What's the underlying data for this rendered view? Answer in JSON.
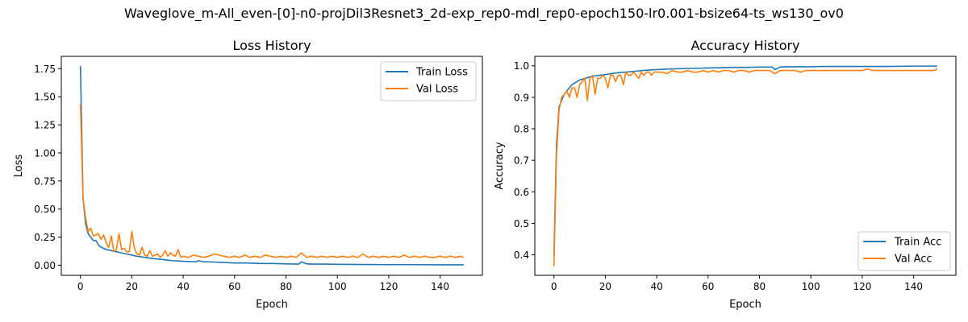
{
  "figure": {
    "suptitle": "Waveglove_m-All_even-[0]-n0-projDil3Resnet3_2d-exp_rep0-mdl_rep0-epoch150-lr0.001-bsize64-ts_ws130_ov0"
  },
  "colors": {
    "train": "#1f77b4",
    "val": "#ff7f0e"
  },
  "chart_data": [
    {
      "type": "line",
      "title": "Loss History",
      "xlabel": "Epoch",
      "ylabel": "Loss",
      "xlim": [
        -7.45,
        156.45
      ],
      "ylim": [
        -0.09,
        1.86
      ],
      "xticks": [
        0,
        20,
        40,
        60,
        80,
        100,
        120,
        140
      ],
      "xtick_labels": [
        "0",
        "20",
        "40",
        "60",
        "80",
        "100",
        "120",
        "140"
      ],
      "yticks": [
        0,
        0.25,
        0.5,
        0.75,
        1.0,
        1.25,
        1.5,
        1.75
      ],
      "ytick_labels": [
        "0.00",
        "0.25",
        "0.50",
        "0.75",
        "1.00",
        "1.25",
        "1.50",
        "1.75"
      ],
      "grid": false,
      "legend_position": "upper right",
      "series": [
        {
          "name": "Train Loss",
          "color_key": "train",
          "x": [
            0,
            1,
            2,
            3,
            4,
            5,
            6,
            7,
            8,
            9,
            10,
            12,
            14,
            16,
            18,
            20,
            22,
            25,
            28,
            32,
            36,
            40,
            45,
            46,
            48,
            50,
            55,
            60,
            65,
            70,
            75,
            80,
            85,
            86,
            88,
            90,
            95,
            100,
            105,
            110,
            120,
            130,
            140,
            149
          ],
          "y": [
            1.77,
            0.6,
            0.37,
            0.28,
            0.25,
            0.22,
            0.22,
            0.18,
            0.16,
            0.15,
            0.14,
            0.13,
            0.12,
            0.11,
            0.1,
            0.09,
            0.08,
            0.07,
            0.06,
            0.05,
            0.04,
            0.035,
            0.03,
            0.04,
            0.03,
            0.03,
            0.025,
            0.02,
            0.02,
            0.015,
            0.015,
            0.012,
            0.01,
            0.03,
            0.012,
            0.01,
            0.01,
            0.008,
            0.007,
            0.006,
            0.005,
            0.005,
            0.004,
            0.004
          ]
        },
        {
          "name": "Val Loss",
          "color_key": "val",
          "x": [
            0,
            1,
            2,
            3,
            4,
            5,
            6,
            7,
            8,
            9,
            10,
            11,
            12,
            13,
            14,
            15,
            16,
            17,
            18,
            19,
            20,
            21,
            22,
            23,
            24,
            25,
            26,
            27,
            28,
            29,
            30,
            31,
            32,
            33,
            34,
            35,
            36,
            37,
            38,
            39,
            40,
            42,
            44,
            46,
            48,
            50,
            52,
            54,
            56,
            58,
            60,
            62,
            64,
            66,
            68,
            70,
            72,
            74,
            76,
            78,
            80,
            82,
            84,
            86,
            88,
            90,
            92,
            94,
            96,
            98,
            100,
            102,
            104,
            106,
            108,
            110,
            112,
            114,
            116,
            118,
            120,
            122,
            124,
            126,
            128,
            130,
            132,
            134,
            136,
            138,
            140,
            142,
            144,
            146,
            148,
            149
          ],
          "y": [
            1.43,
            0.6,
            0.42,
            0.3,
            0.33,
            0.26,
            0.27,
            0.28,
            0.23,
            0.27,
            0.2,
            0.16,
            0.26,
            0.12,
            0.14,
            0.28,
            0.14,
            0.15,
            0.12,
            0.12,
            0.3,
            0.15,
            0.1,
            0.09,
            0.16,
            0.09,
            0.08,
            0.13,
            0.08,
            0.09,
            0.1,
            0.07,
            0.09,
            0.13,
            0.08,
            0.11,
            0.09,
            0.08,
            0.14,
            0.07,
            0.08,
            0.07,
            0.09,
            0.08,
            0.07,
            0.08,
            0.1,
            0.09,
            0.08,
            0.07,
            0.08,
            0.07,
            0.09,
            0.07,
            0.08,
            0.07,
            0.09,
            0.08,
            0.07,
            0.08,
            0.07,
            0.08,
            0.07,
            0.11,
            0.07,
            0.08,
            0.07,
            0.08,
            0.07,
            0.08,
            0.07,
            0.08,
            0.07,
            0.08,
            0.07,
            0.1,
            0.07,
            0.08,
            0.07,
            0.08,
            0.07,
            0.08,
            0.07,
            0.09,
            0.07,
            0.08,
            0.07,
            0.08,
            0.07,
            0.07,
            0.08,
            0.07,
            0.08,
            0.07,
            0.08,
            0.07
          ]
        }
      ]
    },
    {
      "type": "line",
      "title": "Accuracy History",
      "xlabel": "Epoch",
      "ylabel": "Accuracy",
      "xlim": [
        -7.45,
        156.45
      ],
      "ylim": [
        0.335,
        1.03
      ],
      "xticks": [
        0,
        20,
        40,
        60,
        80,
        100,
        120,
        140
      ],
      "xtick_labels": [
        "0",
        "20",
        "40",
        "60",
        "80",
        "100",
        "120",
        "140"
      ],
      "yticks": [
        0.4,
        0.5,
        0.6,
        0.7,
        0.8,
        0.9,
        1.0
      ],
      "ytick_labels": [
        "0.4",
        "0.5",
        "0.6",
        "0.7",
        "0.8",
        "0.9",
        "1.0"
      ],
      "grid": false,
      "legend_position": "lower right",
      "series": [
        {
          "name": "Train Acc",
          "color_key": "train",
          "x": [
            0,
            1,
            2,
            3,
            4,
            5,
            6,
            7,
            8,
            9,
            10,
            12,
            14,
            16,
            18,
            20,
            22,
            25,
            28,
            32,
            36,
            40,
            45,
            50,
            55,
            60,
            65,
            70,
            75,
            80,
            85,
            86,
            88,
            90,
            95,
            100,
            105,
            110,
            120,
            130,
            140,
            149
          ],
          "y": [
            0.4,
            0.75,
            0.87,
            0.89,
            0.91,
            0.92,
            0.93,
            0.94,
            0.945,
            0.95,
            0.955,
            0.96,
            0.965,
            0.968,
            0.97,
            0.972,
            0.975,
            0.978,
            0.98,
            0.983,
            0.986,
            0.988,
            0.99,
            0.991,
            0.992,
            0.993,
            0.994,
            0.995,
            0.995,
            0.996,
            0.996,
            0.988,
            0.996,
            0.997,
            0.997,
            0.997,
            0.998,
            0.998,
            0.998,
            0.998,
            0.999,
            0.999
          ]
        },
        {
          "name": "Val Acc",
          "color_key": "val",
          "x": [
            0,
            1,
            2,
            3,
            4,
            5,
            6,
            7,
            8,
            9,
            10,
            11,
            12,
            13,
            14,
            15,
            16,
            17,
            18,
            19,
            20,
            21,
            22,
            23,
            24,
            25,
            26,
            27,
            28,
            29,
            30,
            31,
            32,
            33,
            34,
            35,
            36,
            37,
            38,
            39,
            40,
            42,
            44,
            46,
            48,
            50,
            52,
            54,
            56,
            58,
            60,
            62,
            64,
            66,
            68,
            70,
            72,
            74,
            76,
            78,
            80,
            82,
            84,
            86,
            88,
            90,
            92,
            94,
            96,
            98,
            100,
            102,
            104,
            106,
            108,
            110,
            112,
            114,
            116,
            118,
            120,
            122,
            124,
            126,
            128,
            130,
            132,
            134,
            136,
            138,
            140,
            142,
            144,
            146,
            148,
            149
          ],
          "y": [
            0.365,
            0.72,
            0.86,
            0.9,
            0.91,
            0.92,
            0.9,
            0.93,
            0.93,
            0.9,
            0.94,
            0.95,
            0.96,
            0.89,
            0.96,
            0.97,
            0.91,
            0.96,
            0.96,
            0.97,
            0.96,
            0.93,
            0.97,
            0.97,
            0.95,
            0.97,
            0.97,
            0.94,
            0.98,
            0.97,
            0.97,
            0.98,
            0.97,
            0.96,
            0.98,
            0.97,
            0.98,
            0.98,
            0.97,
            0.98,
            0.98,
            0.98,
            0.975,
            0.985,
            0.98,
            0.98,
            0.985,
            0.98,
            0.98,
            0.985,
            0.98,
            0.985,
            0.98,
            0.985,
            0.985,
            0.98,
            0.985,
            0.985,
            0.98,
            0.985,
            0.985,
            0.985,
            0.985,
            0.975,
            0.985,
            0.985,
            0.985,
            0.985,
            0.98,
            0.985,
            0.985,
            0.985,
            0.985,
            0.985,
            0.985,
            0.985,
            0.985,
            0.985,
            0.985,
            0.985,
            0.985,
            0.99,
            0.985,
            0.985,
            0.985,
            0.985,
            0.985,
            0.985,
            0.985,
            0.985,
            0.985,
            0.985,
            0.985,
            0.985,
            0.985,
            0.99
          ]
        }
      ]
    }
  ]
}
